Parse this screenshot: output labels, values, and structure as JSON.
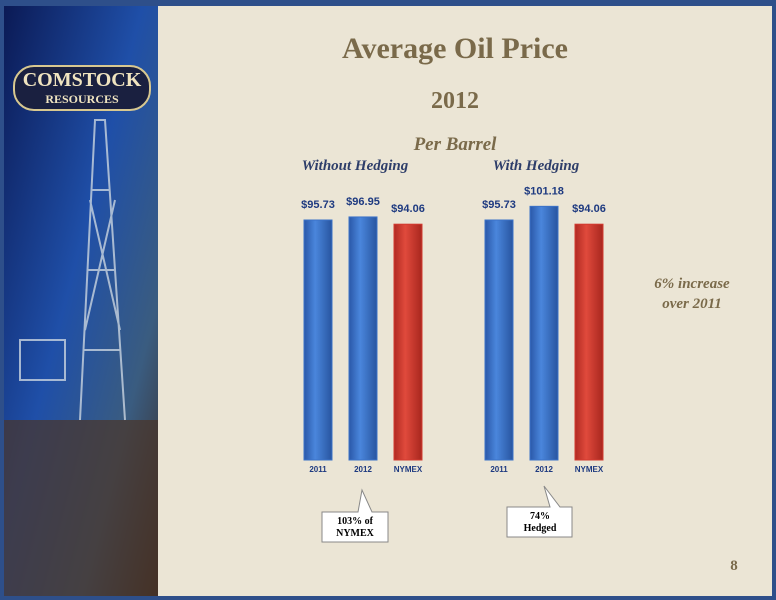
{
  "slide": {
    "title": "Average Oil Price",
    "subtitle": "2012",
    "heading": "Per Barrel",
    "logo": [
      "COMSTOCK",
      "RESOURCES"
    ],
    "note": [
      "6% increase",
      "over 2011"
    ],
    "callouts": [
      [
        "103% of",
        "NYMEX"
      ],
      [
        "74%",
        "Hedged"
      ]
    ],
    "page_number": "8"
  },
  "chart_data": [
    {
      "type": "bar",
      "title": "Without Hedging",
      "categories": [
        "2011",
        "2012",
        "NYMEX"
      ],
      "values": [
        95.73,
        96.95,
        94.06
      ],
      "value_labels": [
        "$95.73",
        "$96.95",
        "$94.06"
      ],
      "colors": [
        "#3b72c8",
        "#3b72c8",
        "#d23a30"
      ]
    },
    {
      "type": "bar",
      "title": "With Hedging",
      "categories": [
        "2011",
        "2012",
        "NYMEX"
      ],
      "values": [
        95.73,
        101.18,
        94.06
      ],
      "value_labels": [
        "$95.73",
        "$101.18",
        "$94.06"
      ],
      "colors": [
        "#3b72c8",
        "#3b72c8",
        "#d23a30"
      ]
    }
  ]
}
